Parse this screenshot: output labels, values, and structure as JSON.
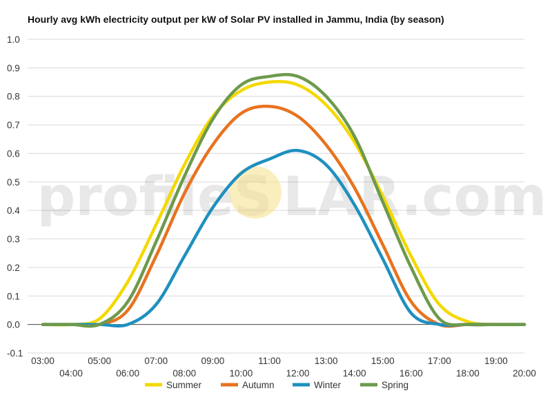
{
  "chart_data": {
    "type": "line",
    "title": "Hourly avg kWh electricity output per kW of Solar PV installed in Jammu, India (by season)",
    "xlabel": "",
    "ylabel": "",
    "x": [
      "03:00",
      "04:00",
      "05:00",
      "06:00",
      "07:00",
      "08:00",
      "09:00",
      "10:00",
      "11:00",
      "12:00",
      "13:00",
      "14:00",
      "15:00",
      "16:00",
      "17:00",
      "18:00",
      "19:00",
      "20:00"
    ],
    "y_ticks": [
      "1.0",
      "0.9",
      "0.8",
      "0.7",
      "0.6",
      "0.5",
      "0.4",
      "0.3",
      "0.2",
      "0.1",
      "0.0",
      "-0.1"
    ],
    "ylim": [
      -0.1,
      1.0
    ],
    "grid": true,
    "legend_position": "bottom",
    "series": [
      {
        "name": "Summer",
        "color": "#f5d800",
        "values": [
          0.0,
          0.0,
          0.02,
          0.15,
          0.35,
          0.56,
          0.73,
          0.82,
          0.85,
          0.84,
          0.77,
          0.64,
          0.45,
          0.24,
          0.07,
          0.01,
          0.0,
          0.0
        ]
      },
      {
        "name": "Autumn",
        "color": "#e87320",
        "values": [
          0.0,
          0.0,
          0.0,
          0.05,
          0.24,
          0.46,
          0.63,
          0.74,
          0.765,
          0.73,
          0.63,
          0.48,
          0.28,
          0.08,
          0.0,
          0.0,
          0.0,
          0.0
        ]
      },
      {
        "name": "Winter",
        "color": "#1f90bf",
        "values": [
          0.0,
          0.0,
          0.0,
          0.0,
          0.07,
          0.24,
          0.41,
          0.53,
          0.58,
          0.61,
          0.56,
          0.42,
          0.23,
          0.04,
          0.0,
          0.0,
          0.0,
          0.0
        ]
      },
      {
        "name": "Spring",
        "color": "#6d9a4c",
        "values": [
          0.0,
          0.0,
          0.0,
          0.08,
          0.29,
          0.52,
          0.72,
          0.84,
          0.87,
          0.87,
          0.8,
          0.66,
          0.43,
          0.2,
          0.02,
          0.0,
          0.0,
          0.0
        ]
      }
    ]
  },
  "watermark": {
    "text_left": "profileS",
    "text_right": "LAR.com",
    "sun_color": "#f5e08a"
  }
}
